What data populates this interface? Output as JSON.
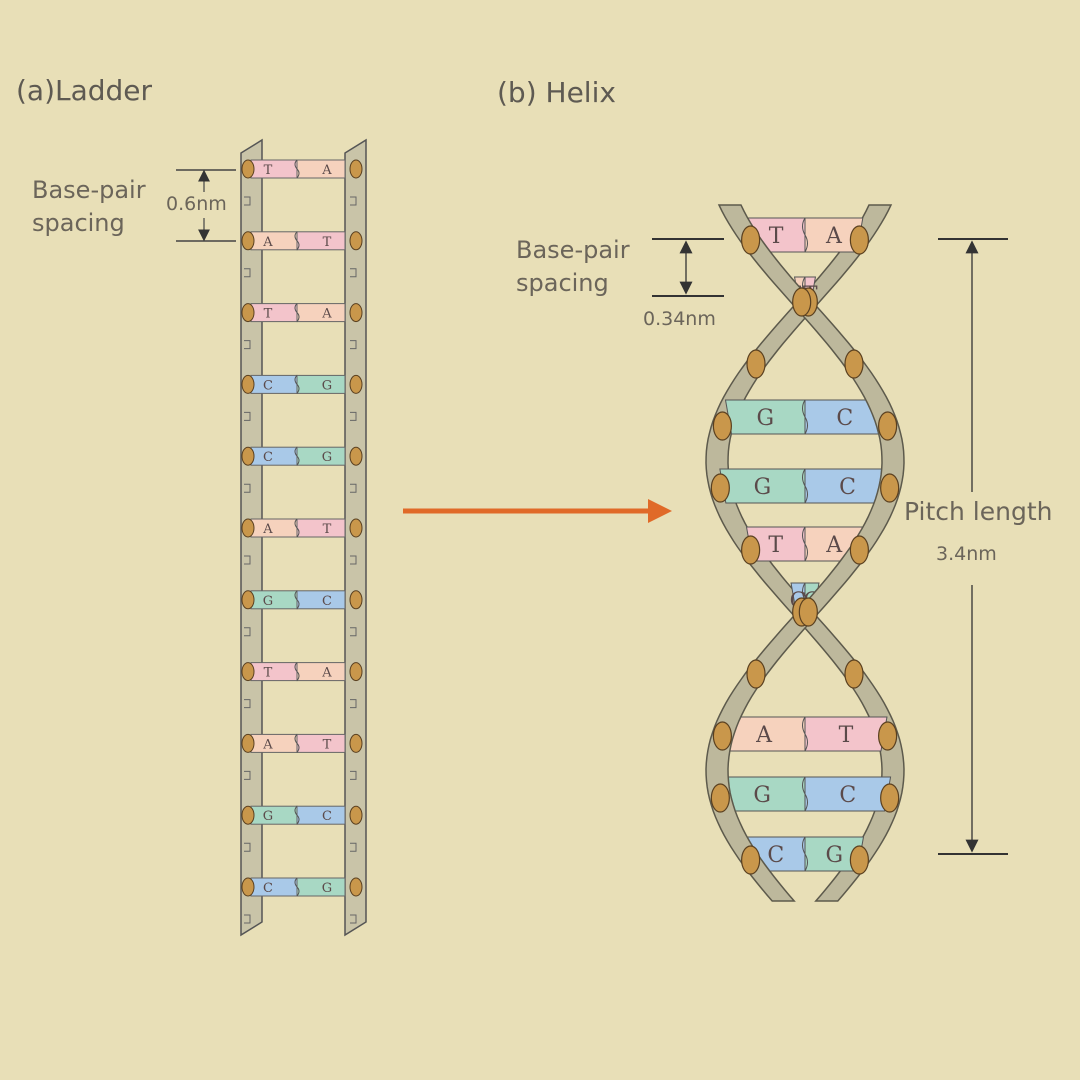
{
  "panels": {
    "ladder": {
      "title": "(a)Ladder",
      "spacing_label": "Base-pair\nspacing",
      "spacing_value": "0.6nm"
    },
    "helix": {
      "title": "(b) Helix",
      "spacing_label": "Base-pair\nspacing",
      "spacing_value": "0.34nm",
      "pitch_label": "Pitch length",
      "pitch_value": "3.4nm"
    }
  },
  "ladder_pairs": [
    {
      "left": "T",
      "right": "A"
    },
    {
      "left": "A",
      "right": "T"
    },
    {
      "left": "T",
      "right": "A"
    },
    {
      "left": "C",
      "right": "G"
    },
    {
      "left": "C",
      "right": "G"
    },
    {
      "left": "A",
      "right": "T"
    },
    {
      "left": "G",
      "right": "C"
    },
    {
      "left": "T",
      "right": "A"
    },
    {
      "left": "A",
      "right": "T"
    },
    {
      "left": "G",
      "right": "C"
    },
    {
      "left": "C",
      "right": "G"
    }
  ],
  "helix_pairs": [
    {
      "left": "T",
      "right": "A"
    },
    {
      "left": "A",
      "right": "T"
    },
    {
      "left": "G",
      "right": "C"
    },
    {
      "left": "G",
      "right": "C"
    },
    {
      "left": "T",
      "right": "A"
    },
    {
      "left": "C",
      "right": "G"
    },
    {
      "left": "A",
      "right": "T"
    },
    {
      "left": "G",
      "right": "C"
    },
    {
      "left": "C",
      "right": "G"
    }
  ],
  "base_colors": {
    "A": "#f6d2bd",
    "T": "#f3c4cb",
    "G": "#a8d8c4",
    "C": "#a9c9e8"
  },
  "colors": {
    "background": "#e8dfb7",
    "strand": "#c9c4a8",
    "node": "#c9974b",
    "arrow": "#e06a28"
  }
}
